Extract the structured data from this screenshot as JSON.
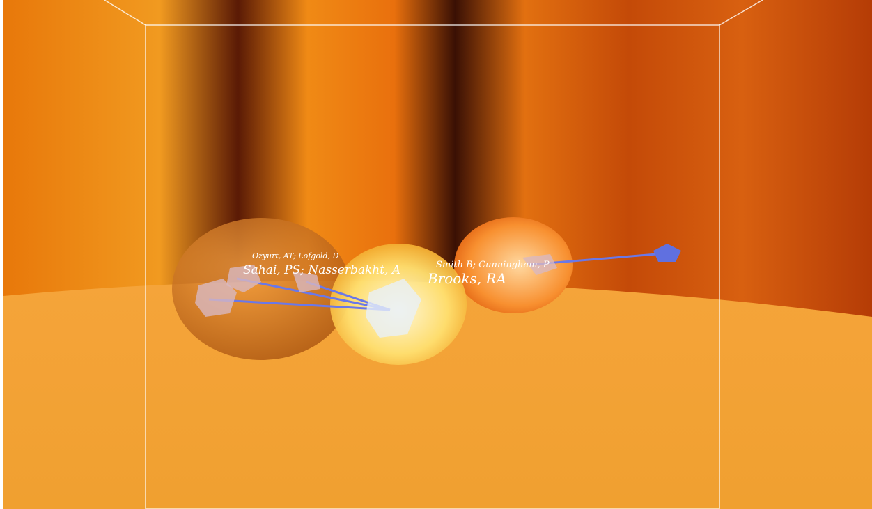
{
  "scene": {
    "labels": [
      {
        "text": "Ozyurt, AT; Lofgold, D"
      },
      {
        "text": "Sahai, PS; Nasserbakht, A"
      },
      {
        "text": "Brooks, RA"
      },
      {
        "text": "Smith B; Cunningham, P"
      }
    ]
  }
}
